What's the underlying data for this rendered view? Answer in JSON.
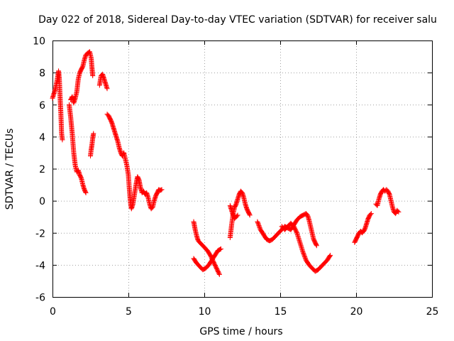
{
  "chart_data": {
    "type": "scatter",
    "title": "Day 022 of 2018, Sidereal Day-to-day VTEC variation (SDTVAR) for receiver salu",
    "xlabel": "GPS time / hours",
    "ylabel": "SDTVAR / TECUs",
    "xlim": [
      0,
      25
    ],
    "ylim": [
      -6,
      10
    ],
    "xticks": [
      0,
      5,
      10,
      15,
      20,
      25
    ],
    "yticks": [
      -6,
      -4,
      -2,
      0,
      2,
      4,
      6,
      8,
      10
    ],
    "xtick_labels": [
      "0",
      "5",
      "10",
      "15",
      "20",
      "25"
    ],
    "ytick_labels": [
      "-6",
      "-4",
      "-2",
      "0",
      "2",
      "4",
      "6",
      "8",
      "10"
    ],
    "grid": true,
    "marker": "+",
    "color": "#ff0000",
    "segments": [
      [
        [
          0.0,
          6.4
        ],
        [
          0.1,
          6.7
        ],
        [
          0.2,
          7.0
        ],
        [
          0.3,
          7.5
        ],
        [
          0.4,
          8.1
        ],
        [
          0.45,
          7.6
        ],
        [
          0.5,
          6.5
        ],
        [
          0.55,
          5.5
        ],
        [
          0.6,
          4.2
        ],
        [
          0.65,
          3.8
        ]
      ],
      [
        [
          1.1,
          6.0
        ],
        [
          1.2,
          5.2
        ],
        [
          1.3,
          4.2
        ],
        [
          1.4,
          3.0
        ],
        [
          1.5,
          2.2
        ],
        [
          1.6,
          1.8
        ],
        [
          1.7,
          1.9
        ],
        [
          1.8,
          1.6
        ],
        [
          1.9,
          1.4
        ],
        [
          2.0,
          1.0
        ],
        [
          2.1,
          0.7
        ],
        [
          2.2,
          0.5
        ]
      ],
      [
        [
          1.2,
          6.3
        ],
        [
          1.3,
          6.5
        ],
        [
          1.4,
          6.1
        ],
        [
          1.5,
          6.4
        ],
        [
          1.6,
          6.8
        ],
        [
          1.7,
          7.6
        ],
        [
          1.8,
          8.0
        ],
        [
          1.9,
          8.2
        ],
        [
          2.0,
          8.4
        ],
        [
          2.1,
          8.8
        ],
        [
          2.2,
          9.1
        ],
        [
          2.3,
          9.2
        ],
        [
          2.45,
          9.3
        ],
        [
          2.55,
          8.9
        ],
        [
          2.6,
          8.3
        ],
        [
          2.65,
          7.8
        ]
      ],
      [
        [
          2.5,
          2.8
        ],
        [
          2.55,
          3.2
        ],
        [
          2.6,
          3.5
        ],
        [
          2.65,
          3.9
        ],
        [
          2.7,
          4.2
        ]
      ],
      [
        [
          3.1,
          7.2
        ],
        [
          3.2,
          7.8
        ],
        [
          3.3,
          7.9
        ],
        [
          3.4,
          7.6
        ],
        [
          3.5,
          7.3
        ],
        [
          3.6,
          7.0
        ]
      ],
      [
        [
          3.6,
          5.4
        ],
        [
          3.7,
          5.3
        ],
        [
          3.8,
          5.1
        ],
        [
          3.9,
          4.9
        ],
        [
          4.0,
          4.6
        ],
        [
          4.1,
          4.3
        ],
        [
          4.2,
          4.0
        ],
        [
          4.3,
          3.7
        ],
        [
          4.4,
          3.3
        ],
        [
          4.5,
          3.0
        ],
        [
          4.6,
          2.8
        ],
        [
          4.7,
          3.0
        ],
        [
          4.8,
          2.6
        ],
        [
          4.9,
          2.2
        ],
        [
          5.0,
          1.6
        ],
        [
          5.05,
          0.9
        ],
        [
          5.1,
          0.3
        ],
        [
          5.15,
          -0.2
        ],
        [
          5.2,
          -0.5
        ],
        [
          5.3,
          -0.2
        ],
        [
          5.4,
          0.4
        ],
        [
          5.5,
          1.0
        ],
        [
          5.6,
          1.5
        ],
        [
          5.7,
          1.3
        ],
        [
          5.8,
          0.8
        ],
        [
          5.9,
          0.5
        ],
        [
          6.0,
          0.6
        ],
        [
          6.1,
          0.4
        ],
        [
          6.2,
          0.5
        ],
        [
          6.3,
          0.2
        ],
        [
          6.4,
          -0.2
        ],
        [
          6.5,
          -0.5
        ],
        [
          6.6,
          -0.4
        ],
        [
          6.7,
          0.0
        ],
        [
          6.8,
          0.3
        ],
        [
          6.9,
          0.5
        ],
        [
          7.0,
          0.7
        ],
        [
          7.1,
          0.65
        ],
        [
          7.2,
          0.7
        ]
      ],
      [
        [
          9.3,
          -1.3
        ],
        [
          9.4,
          -1.8
        ],
        [
          9.5,
          -2.2
        ],
        [
          9.6,
          -2.5
        ],
        [
          9.8,
          -2.7
        ],
        [
          10.0,
          -2.9
        ],
        [
          10.2,
          -3.1
        ],
        [
          10.4,
          -3.4
        ],
        [
          10.6,
          -3.8
        ],
        [
          10.8,
          -4.2
        ],
        [
          11.0,
          -4.6
        ]
      ],
      [
        [
          9.3,
          -3.6
        ],
        [
          9.5,
          -3.9
        ],
        [
          9.7,
          -4.1
        ],
        [
          9.9,
          -4.3
        ],
        [
          10.1,
          -4.2
        ],
        [
          10.3,
          -4.0
        ],
        [
          10.5,
          -3.7
        ],
        [
          10.7,
          -3.4
        ],
        [
          10.9,
          -3.1
        ],
        [
          11.1,
          -3.0
        ]
      ],
      [
        [
          11.7,
          -2.3
        ],
        [
          11.8,
          -1.5
        ],
        [
          11.9,
          -0.8
        ],
        [
          12.0,
          -0.4
        ],
        [
          12.1,
          -0.2
        ],
        [
          12.2,
          0.1
        ],
        [
          12.3,
          0.4
        ],
        [
          12.4,
          0.6
        ],
        [
          12.5,
          0.5
        ],
        [
          12.6,
          0.2
        ],
        [
          12.7,
          -0.2
        ],
        [
          12.8,
          -0.5
        ],
        [
          12.9,
          -0.7
        ],
        [
          13.0,
          -0.9
        ]
      ],
      [
        [
          11.7,
          -0.3
        ],
        [
          11.8,
          -0.6
        ],
        [
          11.9,
          -0.9
        ],
        [
          12.0,
          -1.1
        ],
        [
          12.1,
          -1.0
        ],
        [
          12.2,
          -0.9
        ]
      ],
      [
        [
          13.5,
          -1.3
        ],
        [
          13.7,
          -1.8
        ],
        [
          13.9,
          -2.1
        ],
        [
          14.1,
          -2.4
        ],
        [
          14.3,
          -2.5
        ],
        [
          14.5,
          -2.4
        ],
        [
          14.7,
          -2.2
        ],
        [
          14.9,
          -2.0
        ],
        [
          15.1,
          -1.8
        ],
        [
          15.3,
          -1.6
        ],
        [
          15.5,
          -1.7
        ],
        [
          15.7,
          -1.8
        ],
        [
          15.9,
          -1.5
        ],
        [
          16.1,
          -1.2
        ],
        [
          16.3,
          -1.0
        ],
        [
          16.5,
          -0.9
        ],
        [
          16.7,
          -0.8
        ],
        [
          16.8,
          -0.9
        ],
        [
          16.9,
          -1.2
        ],
        [
          17.0,
          -1.6
        ],
        [
          17.1,
          -2.0
        ],
        [
          17.2,
          -2.4
        ],
        [
          17.3,
          -2.6
        ],
        [
          17.4,
          -2.8
        ]
      ],
      [
        [
          15.1,
          -1.6
        ],
        [
          15.3,
          -1.8
        ],
        [
          15.5,
          -1.6
        ],
        [
          15.7,
          -1.4
        ],
        [
          15.9,
          -1.6
        ],
        [
          16.1,
          -2.0
        ],
        [
          16.3,
          -2.6
        ],
        [
          16.5,
          -3.2
        ],
        [
          16.7,
          -3.7
        ],
        [
          16.9,
          -4.0
        ],
        [
          17.1,
          -4.2
        ],
        [
          17.3,
          -4.4
        ],
        [
          17.5,
          -4.3
        ],
        [
          17.7,
          -4.1
        ],
        [
          17.9,
          -3.9
        ],
        [
          18.1,
          -3.7
        ],
        [
          18.3,
          -3.4
        ]
      ],
      [
        [
          19.9,
          -2.6
        ],
        [
          20.0,
          -2.4
        ],
        [
          20.1,
          -2.2
        ],
        [
          20.2,
          -2.0
        ],
        [
          20.3,
          -1.9
        ],
        [
          20.4,
          -2.0
        ],
        [
          20.5,
          -1.9
        ],
        [
          20.6,
          -1.7
        ],
        [
          20.7,
          -1.4
        ],
        [
          20.8,
          -1.1
        ],
        [
          20.9,
          -0.9
        ],
        [
          21.0,
          -0.8
        ]
      ],
      [
        [
          21.3,
          -0.2
        ],
        [
          21.4,
          -0.3
        ],
        [
          21.5,
          0.1
        ],
        [
          21.6,
          0.4
        ],
        [
          21.7,
          0.6
        ],
        [
          21.8,
          0.7
        ],
        [
          21.9,
          0.6
        ],
        [
          22.0,
          0.7
        ],
        [
          22.1,
          0.6
        ],
        [
          22.2,
          0.4
        ],
        [
          22.3,
          0.0
        ],
        [
          22.4,
          -0.4
        ],
        [
          22.5,
          -0.7
        ],
        [
          22.6,
          -0.8
        ],
        [
          22.7,
          -0.6
        ],
        [
          22.8,
          -0.7
        ]
      ]
    ]
  }
}
